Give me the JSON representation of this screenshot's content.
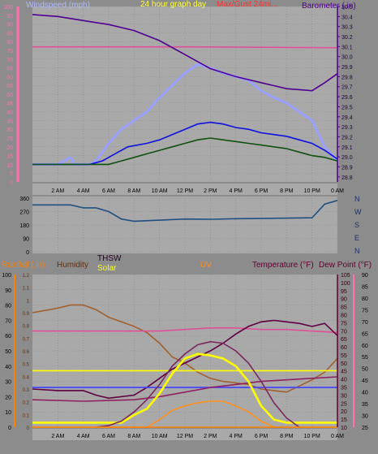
{
  "chart_data": [
    {
      "type": "line",
      "header": {
        "left": "Windspeed (mph)",
        "center": "24 hour graph day",
        "center2": "Max/Gust 24mi...",
        "right": "Barometer (.in)"
      },
      "x_ticks": [
        "2 AM",
        "4 AM",
        "6 AM",
        "8 AM",
        "10 AM",
        "12 PM",
        "2 PM",
        "4 PM",
        "6 PM",
        "8 PM",
        "10 PM",
        "0 AM"
      ],
      "y_left": {
        "min": 0,
        "max": 100,
        "ticks": [
          0,
          5,
          10,
          15,
          20,
          25,
          30,
          35,
          40,
          45,
          50,
          55,
          60,
          65,
          70,
          75,
          80,
          85,
          90,
          95,
          100
        ]
      },
      "y_right": {
        "min": 28.75,
        "max": 30.5,
        "ticks": [
          28.8,
          28.9,
          29.0,
          29.1,
          29.2,
          29.3,
          29.4,
          29.5,
          29.6,
          29.7,
          29.8,
          29.9,
          30.0,
          30.1,
          30.2,
          30.3,
          30.4,
          30.5
        ]
      },
      "series": [
        {
          "color": "#9aa0ff",
          "axis": "left",
          "points": [
            [
              0,
              10
            ],
            [
              2,
              10
            ],
            [
              3,
              14
            ],
            [
              3.3,
              10
            ],
            [
              4.5,
              10
            ],
            [
              5,
              12
            ],
            [
              6,
              22
            ],
            [
              7,
              30
            ],
            [
              8,
              35
            ],
            [
              9,
              40
            ],
            [
              10,
              48
            ],
            [
              11,
              55
            ],
            [
              12,
              62
            ],
            [
              13,
              67
            ],
            [
              14,
              65
            ],
            [
              15,
              62
            ],
            [
              16,
              60
            ],
            [
              17,
              58
            ],
            [
              18,
              52
            ],
            [
              19,
              48
            ],
            [
              20,
              45
            ],
            [
              21,
              40
            ],
            [
              22,
              35
            ],
            [
              23,
              20
            ],
            [
              24,
              12
            ]
          ]
        },
        {
          "color": "#1010e0",
          "axis": "left",
          "points": [
            [
              0,
              10
            ],
            [
              4.5,
              10
            ],
            [
              5.5,
              12
            ],
            [
              6.5,
              16
            ],
            [
              7.5,
              20
            ],
            [
              9,
              22
            ],
            [
              10,
              24
            ],
            [
              11,
              27
            ],
            [
              12,
              30
            ],
            [
              13,
              33
            ],
            [
              14,
              34
            ],
            [
              15,
              33
            ],
            [
              16,
              31
            ],
            [
              17,
              30
            ],
            [
              18,
              28
            ],
            [
              19,
              27
            ],
            [
              20,
              26
            ],
            [
              21,
              24
            ],
            [
              22,
              22
            ],
            [
              23,
              18
            ],
            [
              24,
              13
            ]
          ]
        },
        {
          "color": "#105010",
          "axis": "left",
          "points": [
            [
              0,
              10
            ],
            [
              6,
              10
            ],
            [
              7,
              12
            ],
            [
              8,
              14
            ],
            [
              9,
              16
            ],
            [
              10,
              18
            ],
            [
              11,
              20
            ],
            [
              12,
              22
            ],
            [
              13,
              24
            ],
            [
              14,
              25
            ],
            [
              15,
              24
            ],
            [
              16,
              23
            ],
            [
              17,
              22
            ],
            [
              18,
              21
            ],
            [
              19,
              20
            ],
            [
              20,
              19
            ],
            [
              21,
              17
            ],
            [
              22,
              15
            ],
            [
              23,
              14
            ],
            [
              24,
              12
            ]
          ]
        },
        {
          "color": "#e0509a",
          "axis": "left",
          "points": [
            [
              0,
              77
            ],
            [
              12,
              77
            ],
            [
              24,
              76.5
            ]
          ]
        },
        {
          "color": "#500090",
          "axis": "right",
          "points": [
            [
              0,
              30.42
            ],
            [
              2,
              30.4
            ],
            [
              4,
              30.36
            ],
            [
              6,
              30.32
            ],
            [
              8,
              30.26
            ],
            [
              10,
              30.16
            ],
            [
              12,
              30.02
            ],
            [
              14,
              29.88
            ],
            [
              16,
              29.8
            ],
            [
              18,
              29.74
            ],
            [
              19,
              29.71
            ],
            [
              20,
              29.68
            ],
            [
              21,
              29.67
            ],
            [
              22,
              29.66
            ],
            [
              23,
              29.74
            ],
            [
              24,
              29.83
            ]
          ]
        }
      ]
    },
    {
      "type": "line",
      "right_labels": [
        "N",
        "W",
        "S",
        "E",
        "N"
      ],
      "x_ticks": [
        "2 AM",
        "4 AM",
        "6 AM",
        "8 AM",
        "10 AM",
        "12 PM",
        "2 PM",
        "4 PM",
        "6 PM",
        "8 PM",
        "10 PM",
        "0 AM"
      ],
      "y": {
        "min": 0,
        "max": 360,
        "ticks": [
          0,
          90,
          180,
          270,
          360
        ]
      },
      "series": [
        {
          "color": "#205080",
          "points": [
            [
              0,
              315
            ],
            [
              3,
              315
            ],
            [
              4,
              295
            ],
            [
              5,
              295
            ],
            [
              6,
              270
            ],
            [
              7,
              220
            ],
            [
              8,
              205
            ],
            [
              10,
              212
            ],
            [
              12,
              220
            ],
            [
              14,
              218
            ],
            [
              16,
              222
            ],
            [
              18,
              224
            ],
            [
              20,
              226
            ],
            [
              22,
              228
            ],
            [
              23,
              320
            ],
            [
              24,
              345
            ]
          ]
        }
      ]
    },
    {
      "type": "line",
      "header": {
        "rainfall": "Rainfall (.in)",
        "humidity": "Humidity",
        "thsw": "THSW",
        "solar": "Solar",
        "uv": "UV",
        "temp": "Temperature (°F)",
        "dew": "Dew Point (°F)"
      },
      "x_ticks": [
        "2 AM",
        "4 AM",
        "6 AM",
        "8 AM",
        "10 AM",
        "12 PM",
        "2 PM",
        "4 PM",
        "6 PM",
        "8 PM",
        "10 PM",
        "0 AM"
      ],
      "y_humidity": {
        "min": 0,
        "max": 100,
        "ticks": [
          0,
          10,
          20,
          30,
          40,
          50,
          60,
          70,
          80,
          90,
          100
        ]
      },
      "y_rain": {
        "min": 0,
        "max": 1.2,
        "ticks": [
          0,
          0.1,
          0.2,
          0.3,
          0.4,
          0.5,
          0.6,
          0.7,
          0.8,
          0.9,
          1,
          1.1,
          1.2
        ]
      },
      "y_temp_right": {
        "min": 10,
        "max": 105,
        "ticks": [
          10,
          15,
          20,
          25,
          30,
          35,
          40,
          45,
          50,
          55,
          60,
          65,
          70,
          75,
          80,
          85,
          90,
          95,
          100,
          105
        ]
      },
      "y_far_right": {
        "min": 25,
        "max": 90,
        "ticks": [
          25,
          30,
          35,
          40,
          45,
          50,
          55,
          60,
          65,
          70,
          75,
          80,
          85,
          90
        ]
      },
      "series": [
        {
          "color": "#a06030",
          "axis": "h",
          "points": [
            [
              0,
              75
            ],
            [
              2,
              78
            ],
            [
              3,
              80
            ],
            [
              4,
              80
            ],
            [
              5,
              77
            ],
            [
              6,
              72
            ],
            [
              8,
              66
            ],
            [
              9,
              62
            ],
            [
              10,
              55
            ],
            [
              11,
              46
            ],
            [
              12,
              42
            ],
            [
              13,
              36
            ],
            [
              14,
              32
            ],
            [
              15,
              30
            ],
            [
              16,
              29
            ],
            [
              17,
              28
            ],
            [
              18,
              25
            ],
            [
              19,
              24
            ],
            [
              20,
              23
            ],
            [
              21,
              27
            ],
            [
              22,
              31
            ],
            [
              23,
              36
            ],
            [
              24,
              45
            ]
          ]
        },
        {
          "color": "#e05098",
          "axis": "h",
          "points": [
            [
              0,
              63
            ],
            [
              10,
              63
            ],
            [
              12,
              64
            ],
            [
              14,
              65
            ],
            [
              16,
              65
            ],
            [
              18,
              64
            ],
            [
              20,
              64
            ],
            [
              22,
              63
            ],
            [
              24,
              62
            ]
          ]
        },
        {
          "color": "#ffff00",
          "axis": "h",
          "points": [
            [
              0,
              37
            ],
            [
              24,
              37
            ]
          ]
        },
        {
          "color": "#600040",
          "axis": "h",
          "points": [
            [
              0,
              25
            ],
            [
              2,
              24
            ],
            [
              4,
              24
            ],
            [
              5,
              21
            ],
            [
              6,
              19
            ],
            [
              8,
              21
            ],
            [
              9,
              26
            ],
            [
              10,
              32
            ],
            [
              11,
              38
            ],
            [
              12,
              42
            ],
            [
              13,
              46
            ],
            [
              14,
              50
            ],
            [
              15,
              55
            ],
            [
              16,
              61
            ],
            [
              17,
              66
            ],
            [
              18,
              69
            ],
            [
              19,
              70
            ],
            [
              20,
              69
            ],
            [
              21,
              68
            ],
            [
              22,
              66
            ],
            [
              23,
              68
            ],
            [
              24,
              60
            ]
          ]
        },
        {
          "color": "#4040ff",
          "axis": "h",
          "points": [
            [
              0,
              26
            ],
            [
              24,
              26
            ]
          ]
        },
        {
          "color": "#902060",
          "axis": "h",
          "points": [
            [
              0,
              18
            ],
            [
              4,
              17
            ],
            [
              8,
              18
            ],
            [
              10,
              20
            ],
            [
              12,
              23
            ],
            [
              14,
              26
            ],
            [
              16,
              28
            ],
            [
              18,
              30
            ],
            [
              20,
              31
            ],
            [
              22,
              32
            ],
            [
              24,
              33
            ]
          ]
        },
        {
          "color": "#ffff00",
          "axis": "h",
          "points": [
            [
              0,
              3
            ],
            [
              7,
              3
            ],
            [
              8,
              8
            ],
            [
              9,
              12
            ],
            [
              10,
              22
            ],
            [
              11,
              35
            ],
            [
              12,
              45
            ],
            [
              13,
              48
            ],
            [
              14,
              47
            ],
            [
              15,
              45
            ],
            [
              16,
              40
            ],
            [
              17,
              30
            ],
            [
              18,
              14
            ],
            [
              19,
              5
            ],
            [
              20,
              3
            ],
            [
              24,
              3
            ]
          ]
        },
        {
          "color": "#7a2a5a",
          "axis": "h",
          "points": [
            [
              5,
              0
            ],
            [
              6,
              1
            ],
            [
              7,
              4
            ],
            [
              8,
              10
            ],
            [
              9,
              18
            ],
            [
              10,
              28
            ],
            [
              11,
              40
            ],
            [
              12,
              48
            ],
            [
              13,
              54
            ],
            [
              14,
              56
            ],
            [
              15,
              55
            ],
            [
              16,
              50
            ],
            [
              17,
              42
            ],
            [
              18,
              30
            ],
            [
              19,
              16
            ],
            [
              20,
              6
            ],
            [
              21,
              0
            ]
          ]
        },
        {
          "color": "#ff9020",
          "axis": "h",
          "points": [
            [
              0,
              0
            ],
            [
              9,
              0
            ],
            [
              10,
              5
            ],
            [
              11,
              11
            ],
            [
              12,
              14
            ],
            [
              13,
              16
            ],
            [
              14,
              17
            ],
            [
              15,
              17
            ],
            [
              16,
              14
            ],
            [
              17,
              10
            ],
            [
              18,
              4
            ],
            [
              19,
              0
            ],
            [
              24,
              0
            ]
          ]
        },
        {
          "color": "#ff8000",
          "axis": "h",
          "points": [
            [
              0,
              0
            ],
            [
              24,
              0
            ]
          ]
        }
      ]
    }
  ]
}
